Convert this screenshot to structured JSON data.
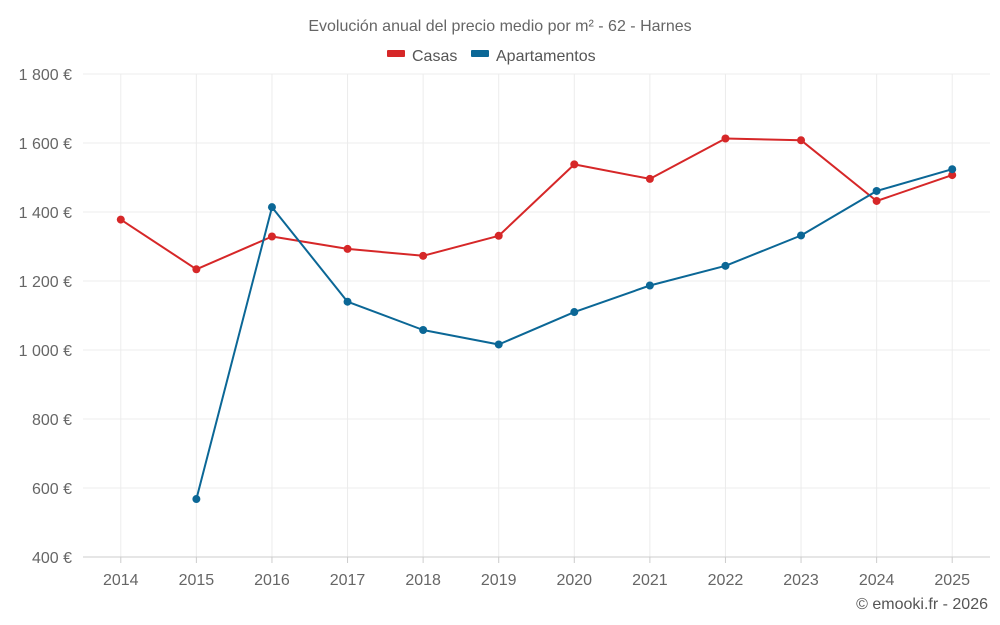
{
  "chart_data": {
    "type": "line",
    "title": "Evolución anual del precio medio por m² - 62 - Harnes",
    "x": [
      "2014",
      "2015",
      "2016",
      "2017",
      "2018",
      "2019",
      "2020",
      "2021",
      "2022",
      "2023",
      "2024",
      "2025"
    ],
    "yticks": [
      400,
      600,
      800,
      1000,
      1200,
      1400,
      1600,
      1800
    ],
    "ytick_labels": [
      "400 €",
      "600 €",
      "800 €",
      "1 000 €",
      "1 200 €",
      "1 400 €",
      "1 600 €",
      "1 800 €"
    ],
    "ylim": [
      400,
      1800
    ],
    "grid": true,
    "legend_position": "top-center",
    "series": [
      {
        "name": "Casas",
        "color": "#d62728",
        "values": [
          1378,
          1234,
          1329,
          1293,
          1273,
          1331,
          1538,
          1496,
          1613,
          1608,
          1432,
          1507
        ]
      },
      {
        "name": "Apartamentos",
        "color": "#0b6796",
        "values": [
          null,
          568,
          1414,
          1140,
          1058,
          1016,
          1110,
          1187,
          1244,
          1332,
          1461,
          1524
        ]
      }
    ],
    "credit": "© emooki.fr - 2026"
  }
}
